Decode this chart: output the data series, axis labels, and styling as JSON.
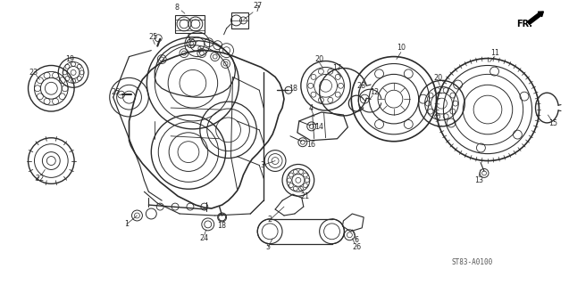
{
  "background_color": "#ffffff",
  "line_color": "#2a2a2a",
  "diagram_code": "ST83-A0100",
  "figsize": [
    6.37,
    3.2
  ],
  "dpi": 100
}
